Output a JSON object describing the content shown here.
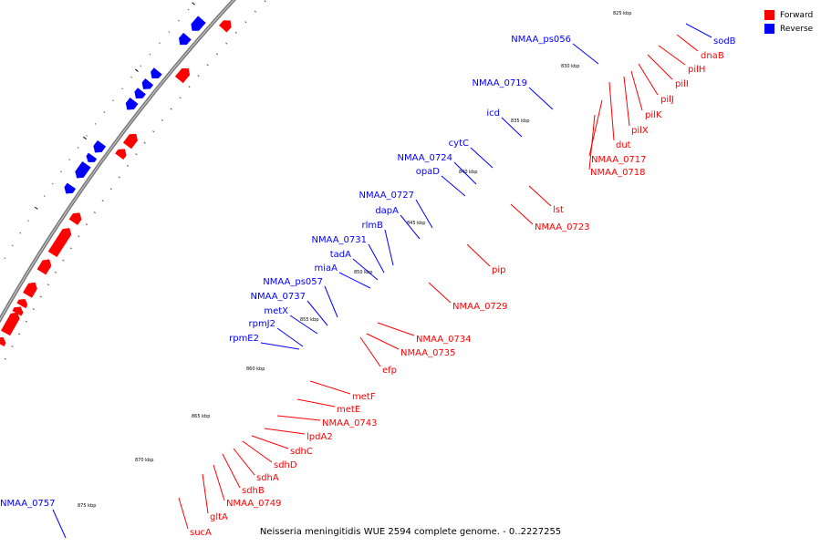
{
  "colors": {
    "forward": "#ff0000",
    "reverse": "#0000ff",
    "backbone": "#777777"
  },
  "legend": {
    "items": [
      {
        "label": "Forward",
        "color": "#ff0000"
      },
      {
        "label": "Reverse",
        "color": "#0000ff"
      }
    ]
  },
  "caption": "Neisseria meningitidis WUE 2594 complete genome. - 0..2227255",
  "ticks": [
    "825 kbp",
    "830 kbp",
    "835 kbp",
    "840 kbp",
    "845 kbp",
    "850 kbp",
    "855 kbp",
    "860 kbp",
    "865 kbp",
    "870 kbp",
    "875 kbp"
  ],
  "reverse_labels": [
    "sodB",
    "NMAA_ps056",
    "NMAA_0719",
    "icd",
    "cytC",
    "NMAA_0724",
    "opaD",
    "NMAA_0727",
    "dapA",
    "rlmB",
    "NMAA_0731",
    "tadA",
    "miaA",
    "NMAA_ps057",
    "NMAA_0737",
    "metX",
    "rpmJ2",
    "rpmE2",
    "NMAA_0757"
  ],
  "forward_labels": [
    "dnaB",
    "pilH",
    "pilI",
    "pilJ",
    "pilK",
    "pilX",
    "dut",
    "NMAA_0717",
    "NMAA_0718",
    "lst",
    "NMAA_0723",
    "pip",
    "NMAA_0729",
    "NMAA_0734",
    "NMAA_0735",
    "efp",
    "metF",
    "metE",
    "NMAA_0743",
    "lpdA2",
    "sdhC",
    "sdhD",
    "sdhA",
    "sdhB",
    "NMAA_0749",
    "gltA",
    "sucA"
  ]
}
